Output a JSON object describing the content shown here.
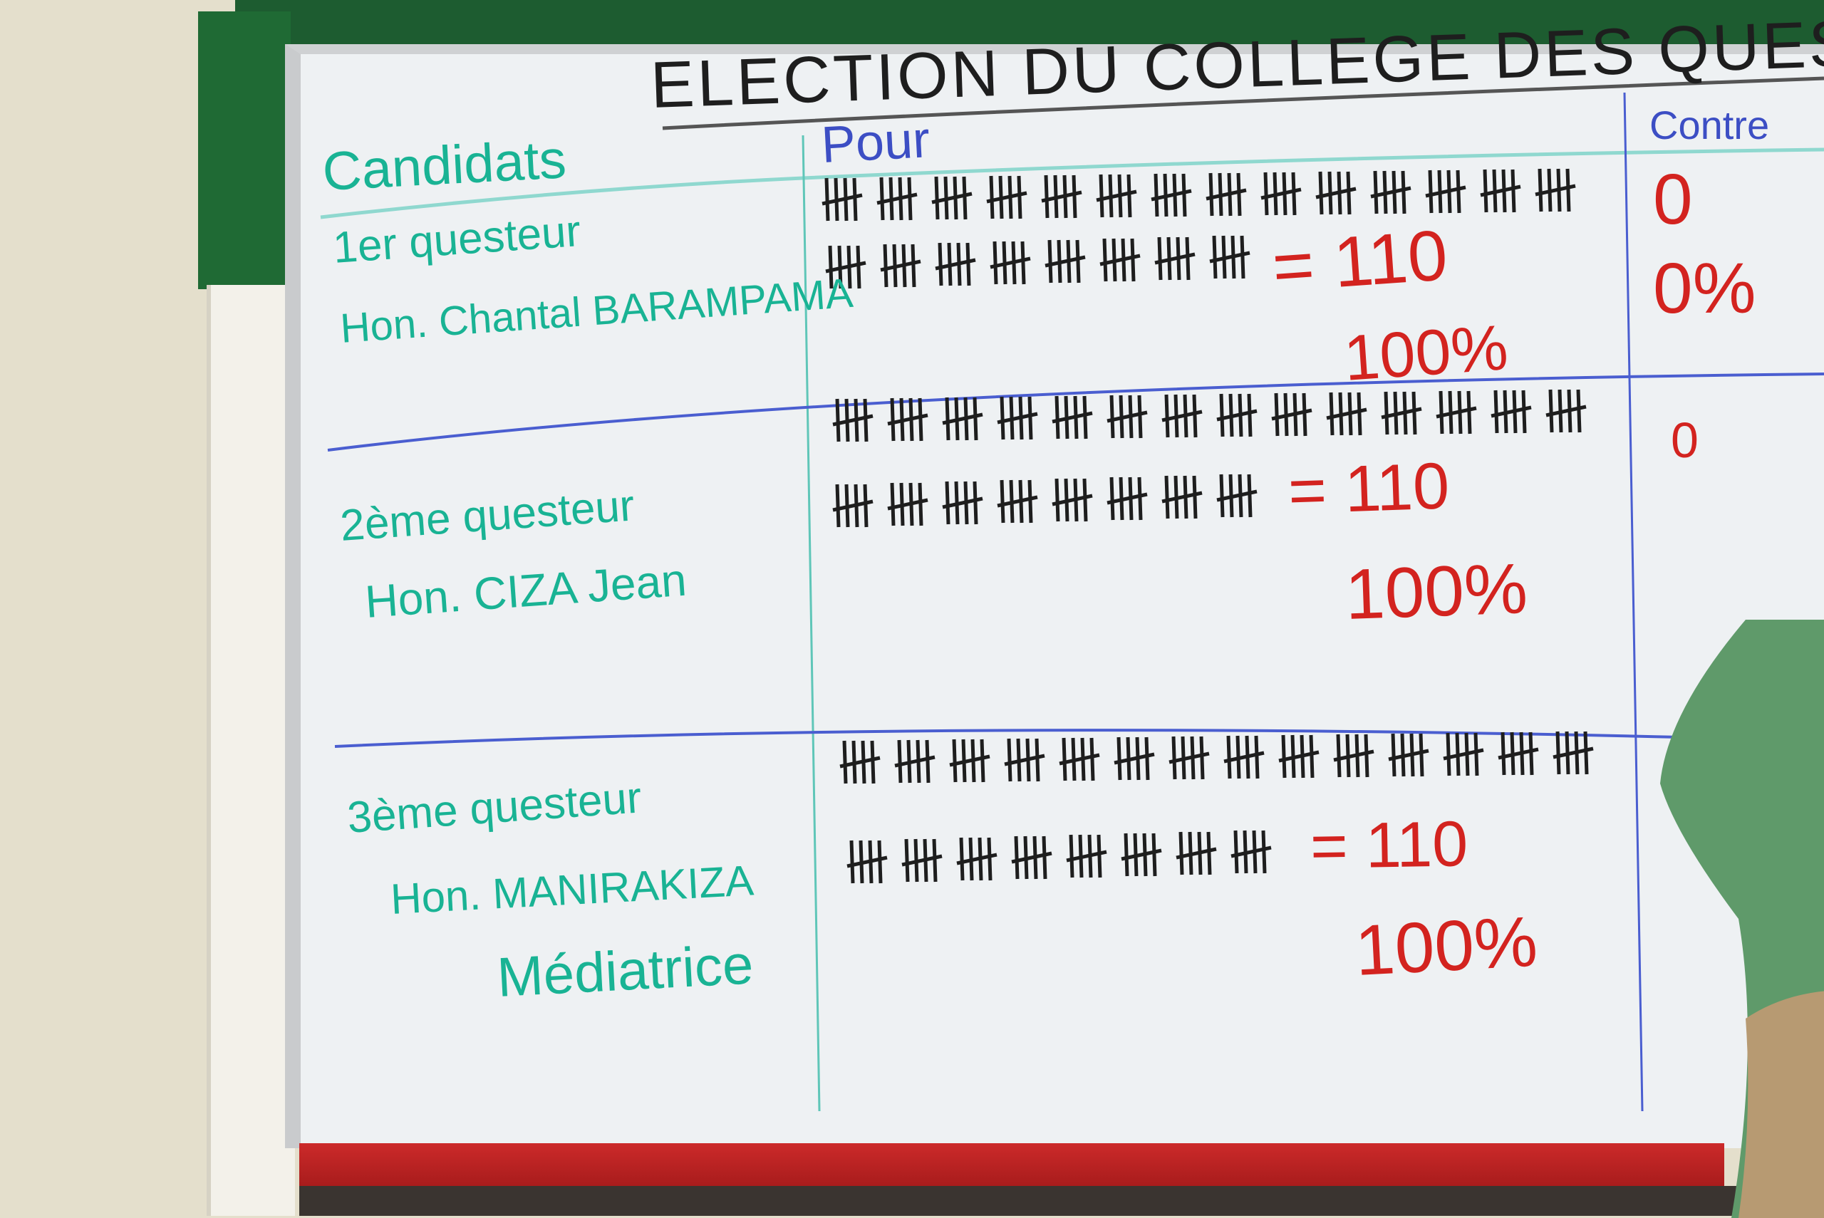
{
  "board": {
    "title": "ELECTION DU COLLEGE DES QUESTEURS",
    "columns": {
      "candidates": "Candidats",
      "for": "Pour",
      "against": "Contre"
    },
    "rows": [
      {
        "position": "1er questeur",
        "name": "Hon. Chantal BARAMPAMA",
        "tally_votes": 110,
        "total": "= 110",
        "percent": "100%",
        "against": [
          "0",
          "0%"
        ]
      },
      {
        "position": "2ème questeur",
        "name": "Hon. CIZA Jean",
        "tally_votes": 110,
        "total": "= 110",
        "percent": "100%",
        "against": [
          "0"
        ]
      },
      {
        "position": "3ème questeur",
        "name": "Hon. MANIRAKIZA",
        "name2": "Médiatrice",
        "tally_votes": 110,
        "total": "= 110",
        "percent": "100%",
        "against": []
      }
    ]
  },
  "colors": {
    "candidate_ink": "#19b394",
    "result_ink": "#d3231f",
    "header_ink": "#3c4ec4",
    "tally_ink": "#1e1e1e",
    "frame_green": "#1f6a34"
  }
}
